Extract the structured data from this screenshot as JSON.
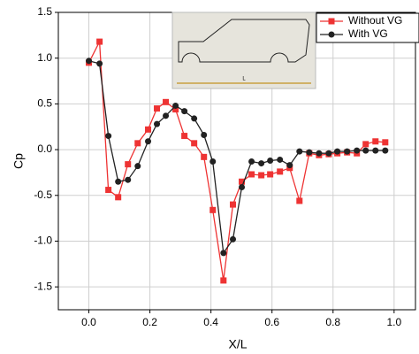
{
  "chart_data": {
    "type": "line",
    "xlabel": "X/L",
    "ylabel": "Cp",
    "annotation": "L",
    "x": [
      0.0,
      0.035,
      0.064,
      0.096,
      0.128,
      0.16,
      0.194,
      0.223,
      0.252,
      0.284,
      0.313,
      0.345,
      0.377,
      0.406,
      0.441,
      0.472,
      0.501,
      0.533,
      0.565,
      0.594,
      0.626,
      0.658,
      0.69,
      0.722,
      0.754,
      0.786,
      0.814,
      0.846,
      0.878,
      0.907,
      0.939,
      0.971
    ],
    "series": [
      {
        "name": "Without VG",
        "color": "#ee3333",
        "marker": "square",
        "values": [
          0.95,
          1.18,
          -0.44,
          -0.52,
          -0.16,
          0.07,
          0.22,
          0.45,
          0.52,
          0.44,
          0.15,
          0.07,
          -0.08,
          -0.66,
          -1.43,
          -0.6,
          -0.35,
          -0.27,
          -0.28,
          -0.27,
          -0.24,
          -0.2,
          -0.56,
          -0.04,
          -0.06,
          -0.05,
          -0.04,
          -0.03,
          -0.04,
          0.06,
          0.09,
          0.08
        ]
      },
      {
        "name": "With VG",
        "color": "#222222",
        "marker": "circle",
        "values": [
          0.97,
          0.94,
          0.15,
          -0.35,
          -0.33,
          -0.18,
          0.09,
          0.28,
          0.37,
          0.48,
          0.42,
          0.34,
          0.16,
          -0.13,
          -1.13,
          -0.98,
          -0.41,
          -0.13,
          -0.15,
          -0.12,
          -0.11,
          -0.17,
          -0.02,
          -0.03,
          -0.04,
          -0.04,
          -0.02,
          -0.02,
          -0.01,
          -0.01,
          -0.01,
          -0.01
        ]
      }
    ],
    "xlim": [
      -0.1,
      1.07
    ],
    "ylim": [
      -1.75,
      1.5
    ],
    "xticks": [
      {
        "value": 0,
        "label": "0.0"
      },
      0.2,
      0.4,
      0.6,
      0.8,
      {
        "value": 1,
        "label": "1.0"
      }
    ],
    "yticks": [
      1.5,
      {
        "value": 1,
        "label": "1.0"
      },
      0.5,
      {
        "value": 0,
        "label": "0.0"
      },
      -0.5,
      {
        "value": -1,
        "label": "-1.0"
      },
      -1.5
    ],
    "grid": true,
    "legend": "upper right"
  }
}
